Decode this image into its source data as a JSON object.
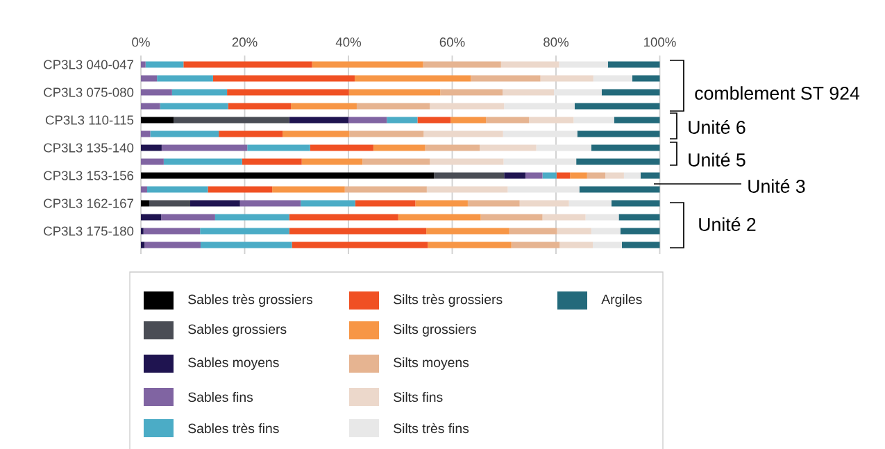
{
  "chart_data": {
    "type": "bar",
    "orientation": "horizontal",
    "stacked": true,
    "categories": [
      "CP3L3 040-047",
      null,
      "CP3L3 075-080",
      null,
      "CP3L3 110-115",
      null,
      "CP3L3 135-140",
      null,
      "CP3L3 153-156",
      null,
      "CP3L3 162-167",
      null,
      "CP3L3 175-180",
      null
    ],
    "series": [
      {
        "name": "Sables très grossiers",
        "color": "#000000",
        "values": [
          0,
          0,
          0,
          0,
          6.3,
          0,
          0,
          0,
          56.5,
          0,
          1.6,
          0,
          0,
          0
        ]
      },
      {
        "name": "Sables grossiers",
        "color": "#4a4d55",
        "values": [
          0,
          0,
          0,
          0,
          22.3,
          0,
          0,
          0,
          13.5,
          0,
          7.9,
          0,
          0,
          0
        ]
      },
      {
        "name": "Sables moyens",
        "color": "#1f1450",
        "values": [
          0,
          0,
          0,
          0,
          11.4,
          0,
          4.0,
          0,
          4.1,
          0,
          9.6,
          3.9,
          0.5,
          0.7
        ]
      },
      {
        "name": "Sables fins",
        "color": "#8064a2",
        "values": [
          0.9,
          3.1,
          6.0,
          3.7,
          7.4,
          1.8,
          16.5,
          4.4,
          3.3,
          1.2,
          11.7,
          10.4,
          10.9,
          10.8
        ]
      },
      {
        "name": "Sables très fins",
        "color": "#4bacc6",
        "values": [
          7.3,
          10.8,
          10.6,
          13.1,
          5.9,
          13.2,
          12.1,
          15.1,
          2.7,
          11.7,
          10.5,
          14.3,
          17.2,
          17.6
        ]
      },
      {
        "name": "Silts très grossiers",
        "color": "#f05023",
        "values": [
          24.8,
          27.3,
          23.5,
          12.1,
          6.4,
          12.3,
          12.2,
          11.5,
          2.6,
          12.4,
          11.6,
          21.0,
          26.4,
          26.2
        ]
      },
      {
        "name": "Silts grossiers",
        "color": "#f79646",
        "values": [
          21.4,
          22.4,
          17.6,
          12.7,
          6.8,
          12.9,
          10.0,
          11.7,
          3.3,
          14.0,
          10.1,
          15.9,
          16.0,
          16.1
        ]
      },
      {
        "name": "Silts moyens",
        "color": "#e6b491",
        "values": [
          15.0,
          13.4,
          12.0,
          14.1,
          8.3,
          14.3,
          10.5,
          13.0,
          3.5,
          15.8,
          10.0,
          11.9,
          9.2,
          9.3
        ]
      },
      {
        "name": "Silts fins",
        "color": "#ecd8cb",
        "values": [
          11.2,
          10.2,
          9.9,
          14.3,
          8.6,
          15.3,
          10.9,
          14.2,
          3.6,
          15.6,
          9.5,
          8.3,
          6.6,
          6.4
        ]
      },
      {
        "name": "Silts très fins",
        "color": "#e8e8e8",
        "values": [
          9.4,
          7.5,
          9.2,
          13.6,
          7.8,
          14.3,
          10.6,
          14.0,
          3.2,
          13.8,
          8.2,
          6.4,
          5.6,
          5.6
        ]
      },
      {
        "name": "Argiles",
        "color": "#236a7b",
        "values": [
          10.0,
          5.3,
          11.2,
          16.4,
          8.8,
          15.9,
          13.2,
          16.1,
          3.7,
          15.5,
          9.3,
          7.9,
          7.6,
          7.3
        ]
      }
    ],
    "xlim": [
      0,
      100
    ],
    "xticks": [
      {
        "value": 0,
        "label": "0%"
      },
      {
        "value": 20,
        "label": "20%"
      },
      {
        "value": 40,
        "label": "40%"
      },
      {
        "value": 60,
        "label": "60%"
      },
      {
        "value": 80,
        "label": "80%"
      },
      {
        "value": 100,
        "label": "100%"
      }
    ],
    "grid": "x",
    "legend": "bottom",
    "annotations": [
      "comblement ST 924",
      "Unité 6",
      "Unité 5",
      "Unité 3",
      "Unité 2"
    ]
  }
}
